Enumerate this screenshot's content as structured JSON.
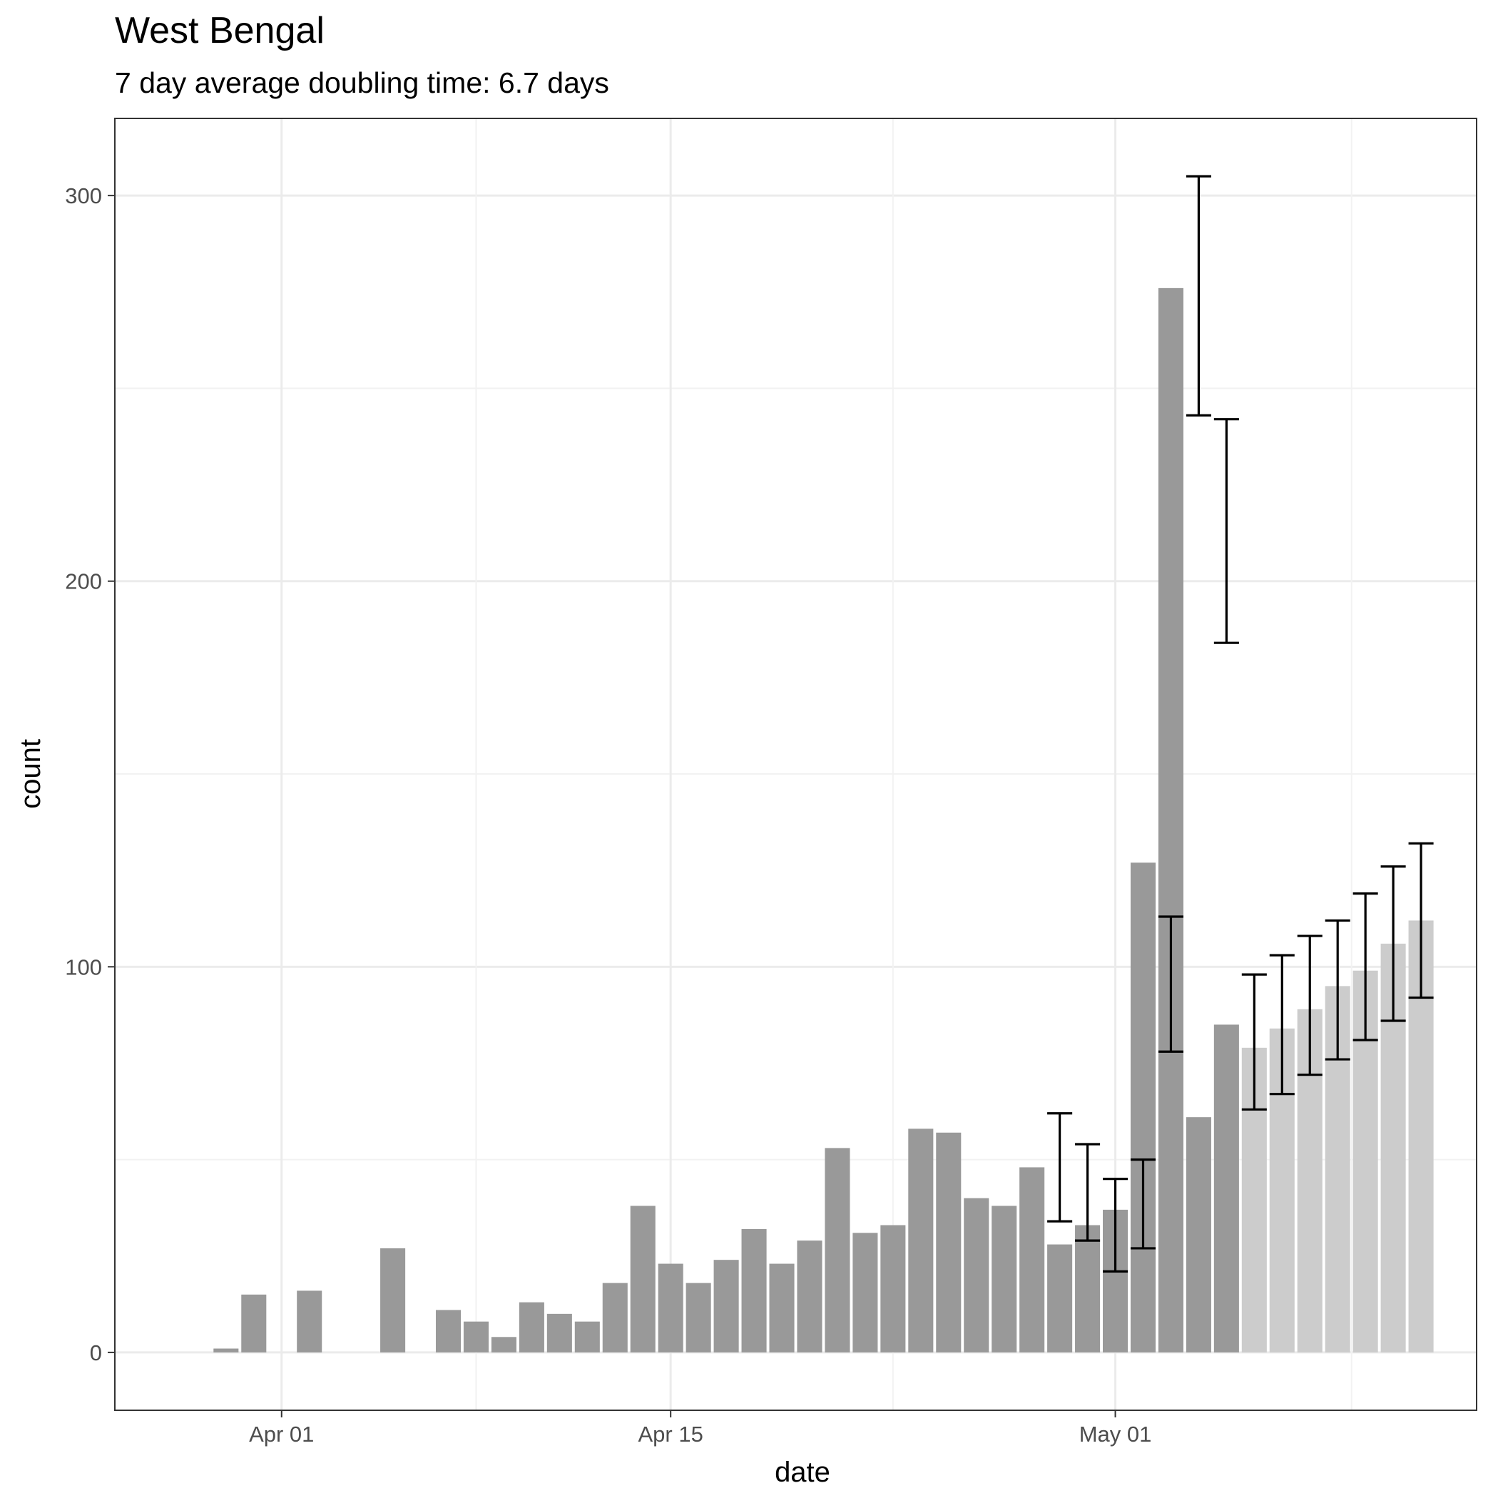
{
  "chart_data": {
    "type": "bar",
    "title": "West Bengal",
    "subtitle": "7 day average doubling time: 6.7 days",
    "xlabel": "date",
    "ylabel": "count",
    "ylim": [
      -15,
      320
    ],
    "x_range": [
      "2020-03-26",
      "2020-05-14"
    ],
    "y_ticks": [
      0,
      100,
      200,
      300
    ],
    "x_ticks": [
      {
        "date": "2020-04-01",
        "label": "Apr 01"
      },
      {
        "date": "2020-04-15",
        "label": "Apr 15"
      },
      {
        "date": "2020-05-01",
        "label": "May 01"
      }
    ],
    "grid": true,
    "colors": {
      "observed": "#999999",
      "projected": "#cccccc",
      "error_bar": "#000000",
      "grid_major": "#ebebeb",
      "grid_minor": "#f2f2f2",
      "panel_border": "#333333"
    },
    "series": [
      {
        "kind": "observed",
        "points": [
          {
            "date": "2020-03-30",
            "value": 1
          },
          {
            "date": "2020-03-31",
            "value": 15
          },
          {
            "date": "2020-04-01",
            "value": 0
          },
          {
            "date": "2020-04-02",
            "value": 16
          },
          {
            "date": "2020-04-03",
            "value": 0
          },
          {
            "date": "2020-04-04",
            "value": 0
          },
          {
            "date": "2020-04-05",
            "value": 27
          },
          {
            "date": "2020-04-06",
            "value": 0
          },
          {
            "date": "2020-04-07",
            "value": 11
          },
          {
            "date": "2020-04-08",
            "value": 8
          },
          {
            "date": "2020-04-09",
            "value": 4
          },
          {
            "date": "2020-04-10",
            "value": 13
          },
          {
            "date": "2020-04-11",
            "value": 10
          },
          {
            "date": "2020-04-12",
            "value": 8
          },
          {
            "date": "2020-04-13",
            "value": 18
          },
          {
            "date": "2020-04-14",
            "value": 38
          },
          {
            "date": "2020-04-15",
            "value": 23
          },
          {
            "date": "2020-04-16",
            "value": 18
          },
          {
            "date": "2020-04-17",
            "value": 24
          },
          {
            "date": "2020-04-18",
            "value": 32
          },
          {
            "date": "2020-04-19",
            "value": 23
          },
          {
            "date": "2020-04-20",
            "value": 29
          },
          {
            "date": "2020-04-21",
            "value": 53
          },
          {
            "date": "2020-04-22",
            "value": 31
          },
          {
            "date": "2020-04-23",
            "value": 33
          },
          {
            "date": "2020-04-24",
            "value": 58
          },
          {
            "date": "2020-04-25",
            "value": 57
          },
          {
            "date": "2020-04-26",
            "value": 40
          },
          {
            "date": "2020-04-27",
            "value": 38
          },
          {
            "date": "2020-04-28",
            "value": 48
          },
          {
            "date": "2020-04-29",
            "value": 28
          },
          {
            "date": "2020-04-30",
            "value": 33
          },
          {
            "date": "2020-05-01",
            "value": 37
          },
          {
            "date": "2020-05-02",
            "value": 127
          },
          {
            "date": "2020-05-03",
            "value": 276
          },
          {
            "date": "2020-05-04",
            "value": 61
          },
          {
            "date": "2020-05-05",
            "value": 85
          }
        ]
      },
      {
        "kind": "projected",
        "points": [
          {
            "date": "2020-05-06",
            "value": 79
          },
          {
            "date": "2020-05-07",
            "value": 84
          },
          {
            "date": "2020-05-08",
            "value": 89
          },
          {
            "date": "2020-05-09",
            "value": 95
          },
          {
            "date": "2020-05-10",
            "value": 99
          },
          {
            "date": "2020-05-11",
            "value": 106
          },
          {
            "date": "2020-05-12",
            "value": 112
          }
        ]
      }
    ],
    "error_bars": [
      {
        "date": "2020-04-29",
        "low": 34,
        "high": 62
      },
      {
        "date": "2020-04-30",
        "low": 29,
        "high": 54
      },
      {
        "date": "2020-05-01",
        "low": 21,
        "high": 45
      },
      {
        "date": "2020-05-02",
        "low": 27,
        "high": 50
      },
      {
        "date": "2020-05-03",
        "low": 78,
        "high": 113
      },
      {
        "date": "2020-05-04",
        "low": 243,
        "high": 305
      },
      {
        "date": "2020-05-05",
        "low": 184,
        "high": 242
      },
      {
        "date": "2020-05-06",
        "low": 63,
        "high": 98
      },
      {
        "date": "2020-05-07",
        "low": 67,
        "high": 103
      },
      {
        "date": "2020-05-08",
        "low": 72,
        "high": 108
      },
      {
        "date": "2020-05-09",
        "low": 76,
        "high": 112
      },
      {
        "date": "2020-05-10",
        "low": 81,
        "high": 119
      },
      {
        "date": "2020-05-11",
        "low": 86,
        "high": 126
      },
      {
        "date": "2020-05-12",
        "low": 92,
        "high": 132
      }
    ]
  }
}
